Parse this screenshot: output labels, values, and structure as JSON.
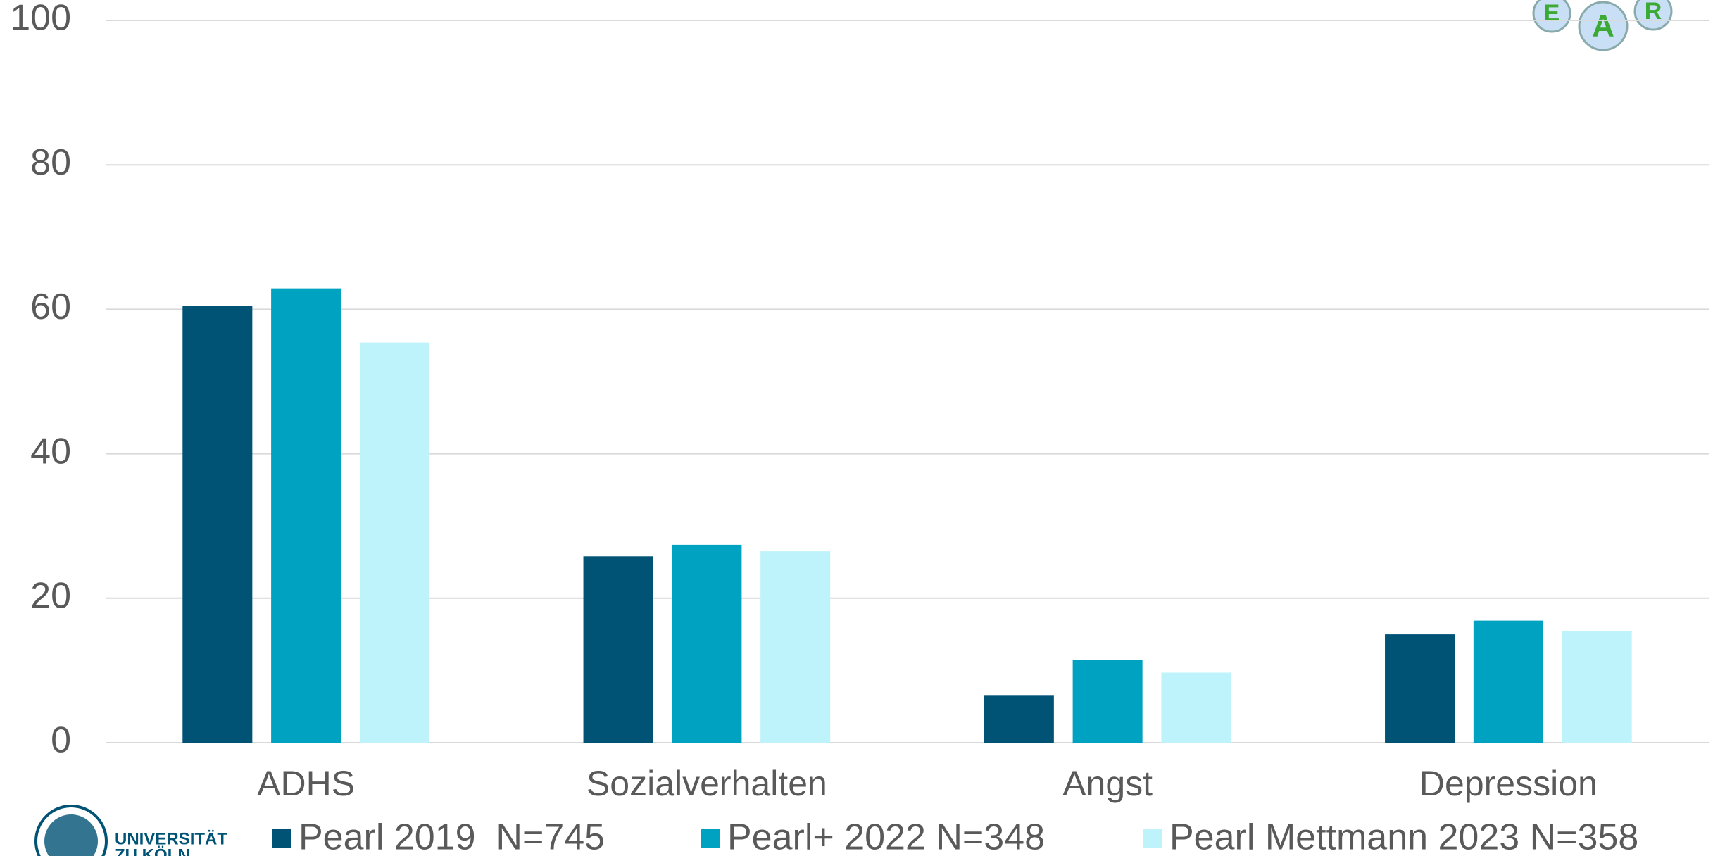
{
  "chart_data": {
    "type": "bar",
    "categories": [
      "ADHS",
      "Sozialverhalten",
      "Angst",
      "Depression"
    ],
    "series": [
      {
        "name": "Pearl 2019  N=745",
        "color": "#005375",
        "values": [
          60.5,
          25.8,
          6.5,
          15.0
        ]
      },
      {
        "name": "Pearl+ 2022 N=348",
        "color": "#00a2c2",
        "values": [
          62.9,
          27.4,
          11.5,
          16.9
        ]
      },
      {
        "name": "Pearl Mettmann 2023 N=358",
        "color": "#bff3fc",
        "values": [
          55.4,
          26.5,
          9.7,
          15.4
        ]
      }
    ],
    "ylim": [
      0,
      100
    ],
    "yticks": [
      0,
      20,
      40,
      60,
      80,
      100
    ],
    "grid": true,
    "legend": "bottom"
  },
  "logo": {
    "lines": [
      "UNIVERSITÄT",
      "ZU KÖLN"
    ]
  },
  "badge": {
    "letters": [
      "E",
      "A",
      "R"
    ]
  }
}
